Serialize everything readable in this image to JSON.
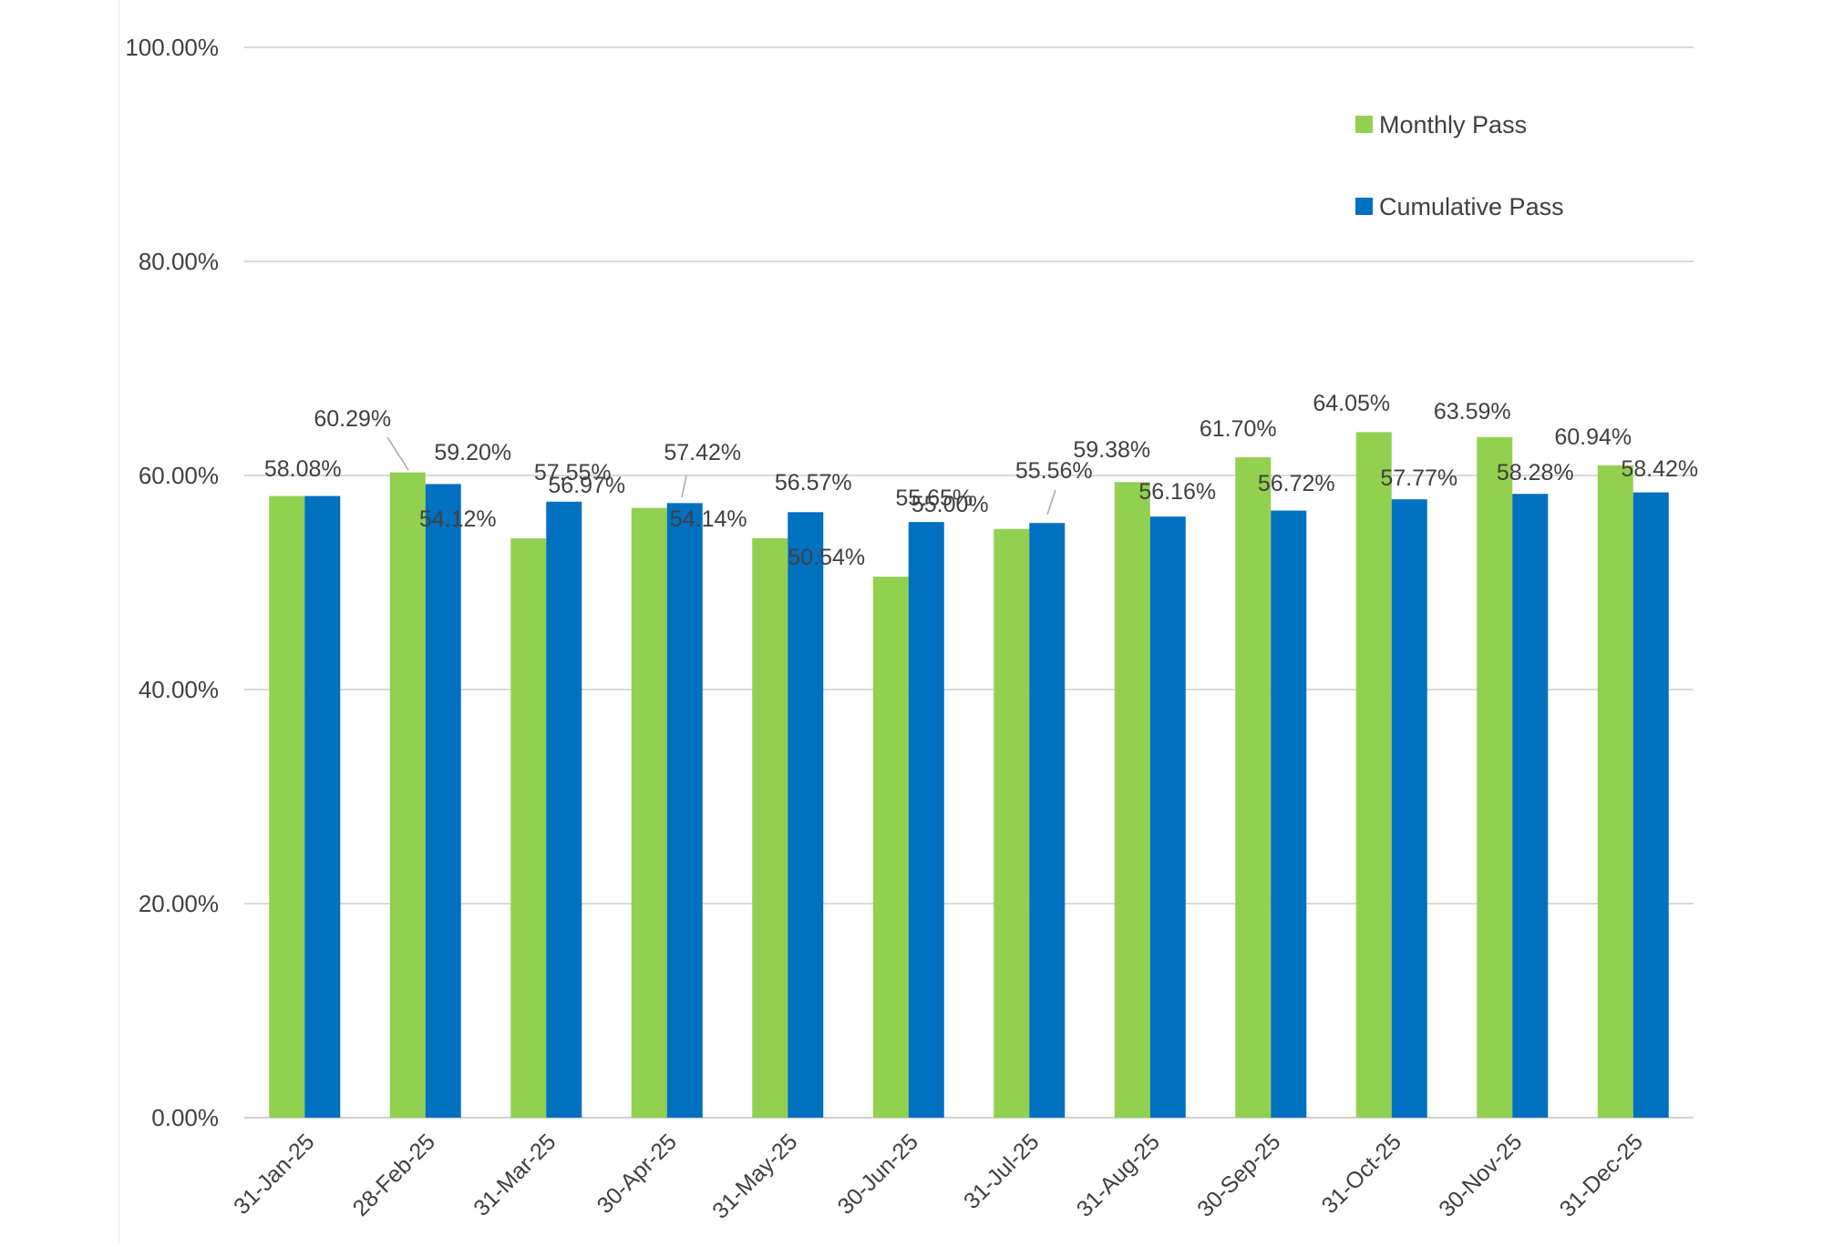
{
  "chart_data": {
    "type": "bar",
    "title": "",
    "xlabel": "",
    "ylabel": "",
    "categories": [
      "31-Jan-25",
      "28-Feb-25",
      "31-Mar-25",
      "30-Apr-25",
      "31-May-25",
      "30-Jun-25",
      "31-Jul-25",
      "31-Aug-25",
      "30-Sep-25",
      "31-Oct-25",
      "30-Nov-25",
      "31-Dec-25"
    ],
    "series": [
      {
        "name": "Monthly Pass",
        "color": "#92d050",
        "values": [
          58.08,
          60.29,
          54.12,
          56.97,
          54.14,
          50.54,
          55.0,
          59.38,
          61.7,
          64.05,
          63.59,
          60.94
        ],
        "labels": [
          "58.08%",
          "60.29%",
          "54.12%",
          "56.97%",
          "54.14%",
          "50.54%",
          "55.00%",
          "59.38%",
          "61.70%",
          "64.05%",
          "63.59%",
          "60.94%"
        ]
      },
      {
        "name": "Cumulative Pass",
        "color": "#0070c0",
        "values": [
          58.08,
          59.2,
          57.55,
          57.42,
          56.57,
          55.65,
          55.56,
          56.16,
          56.72,
          57.77,
          58.28,
          58.42
        ],
        "labels": [
          "58.08%",
          "59.20%",
          "57.55%",
          "57.42%",
          "56.57%",
          "55.65%",
          "55.56%",
          "56.16%",
          "56.72%",
          "57.77%",
          "58.28%",
          "58.42%"
        ]
      }
    ],
    "ylim": [
      0,
      100
    ],
    "yticks": [
      0,
      20,
      40,
      60,
      80,
      100
    ],
    "ytick_labels": [
      "0.00%",
      "20.00%",
      "40.00%",
      "60.00%",
      "80.00%",
      "100.00%"
    ],
    "grid": true,
    "legend_position": "top-right",
    "gridline_color": "#d9d9d9",
    "leader_line_color": "#a6a6a6"
  }
}
